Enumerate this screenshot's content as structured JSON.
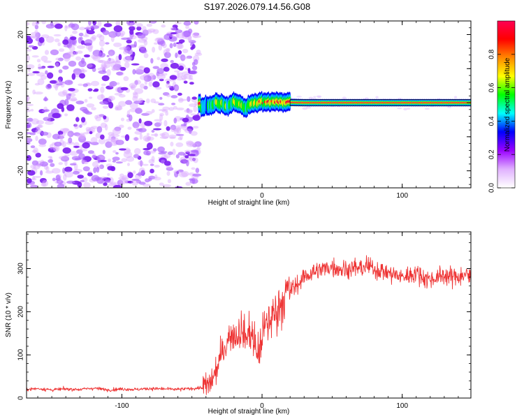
{
  "title": "S197.2026.079.14.56.G08",
  "chart_data": [
    {
      "type": "heatmap",
      "name": "spectrogram",
      "xlabel": "Height of straight line (km)",
      "ylabel": "Frequency (Hz)",
      "xlim": [
        -168,
        149
      ],
      "ylim": [
        -25,
        24
      ],
      "xticks": [
        -100,
        0,
        100
      ],
      "yticks": [
        -20,
        -10,
        0,
        10,
        20
      ],
      "colorbar": {
        "label": "Normalized spectral amplitude",
        "range": [
          0,
          1
        ],
        "ticks": [
          "0.0",
          "0.2",
          "0.4",
          "0.6",
          "0.8"
        ],
        "tick_values": [
          0,
          0.2,
          0.4,
          0.6,
          0.8
        ],
        "colors": [
          "#ffffff",
          "#e0b0ff",
          "#9900ff",
          "#0000ff",
          "#00ffff",
          "#00ff00",
          "#ffff00",
          "#ff8800",
          "#ff0000",
          "#ff0055"
        ]
      },
      "noise_region_km": [
        -168,
        -45
      ],
      "signal_track": [
        {
          "x": -44,
          "f": -1.5,
          "a": 0.25
        },
        {
          "x": -40,
          "f": -0.8,
          "a": 0.35
        },
        {
          "x": -36,
          "f": -1.0,
          "a": 0.4
        },
        {
          "x": -32,
          "f": 0.2,
          "a": 0.45
        },
        {
          "x": -28,
          "f": -0.5,
          "a": 0.5
        },
        {
          "x": -24,
          "f": -1.2,
          "a": 0.45
        },
        {
          "x": -20,
          "f": 0.5,
          "a": 0.55
        },
        {
          "x": -16,
          "f": -0.6,
          "a": 0.5
        },
        {
          "x": -12,
          "f": -1.5,
          "a": 0.4
        },
        {
          "x": -8,
          "f": -0.2,
          "a": 0.6
        },
        {
          "x": -4,
          "f": 0.0,
          "a": 0.65
        },
        {
          "x": 0,
          "f": 0.3,
          "a": 0.7
        },
        {
          "x": 5,
          "f": 0.1,
          "a": 0.75
        },
        {
          "x": 10,
          "f": 0.4,
          "a": 0.7
        },
        {
          "x": 15,
          "f": 0.1,
          "a": 0.8
        },
        {
          "x": 20,
          "f": 0.1,
          "a": 0.85
        },
        {
          "x": 30,
          "f": 0.0,
          "a": 0.9
        },
        {
          "x": 40,
          "f": 0.0,
          "a": 0.9
        },
        {
          "x": 60,
          "f": 0.0,
          "a": 0.92
        },
        {
          "x": 80,
          "f": 0.0,
          "a": 0.9
        },
        {
          "x": 100,
          "f": 0.0,
          "a": 0.9
        },
        {
          "x": 120,
          "f": 0.0,
          "a": 0.92
        },
        {
          "x": 140,
          "f": 0.0,
          "a": 0.92
        },
        {
          "x": 149,
          "f": 0.0,
          "a": 0.9
        }
      ]
    },
    {
      "type": "line",
      "name": "snr",
      "xlabel": "Height of straight line (km)",
      "ylabel": "SNR (10 * v/v)",
      "xlim": [
        -168,
        149
      ],
      "ylim": [
        0,
        385
      ],
      "xticks": [
        -100,
        0,
        100
      ],
      "yticks": [
        0,
        100,
        200,
        300
      ],
      "color": "#ee3333",
      "series": [
        {
          "name": "SNR",
          "x": [
            -168,
            -160,
            -150,
            -140,
            -130,
            -120,
            -110,
            -100,
            -90,
            -80,
            -70,
            -60,
            -50,
            -42,
            -38,
            -35,
            -32,
            -28,
            -25,
            -22,
            -18,
            -15,
            -12,
            -8,
            -5,
            -2,
            0,
            3,
            6,
            10,
            14,
            18,
            22,
            26,
            30,
            35,
            40,
            45,
            50,
            55,
            60,
            65,
            70,
            75,
            80,
            85,
            90,
            95,
            100,
            105,
            110,
            115,
            120,
            125,
            130,
            135,
            140,
            145,
            149
          ],
          "values": [
            20,
            22,
            19,
            21,
            20,
            23,
            19,
            21,
            20,
            22,
            21,
            20,
            22,
            24,
            30,
            45,
            70,
            110,
            130,
            150,
            145,
            160,
            140,
            155,
            120,
            100,
            150,
            165,
            185,
            200,
            225,
            245,
            255,
            265,
            280,
            290,
            295,
            300,
            305,
            300,
            298,
            302,
            300,
            305,
            300,
            295,
            290,
            285,
            280,
            285,
            290,
            280,
            275,
            280,
            285,
            280,
            282,
            285,
            280
          ]
        }
      ]
    }
  ]
}
